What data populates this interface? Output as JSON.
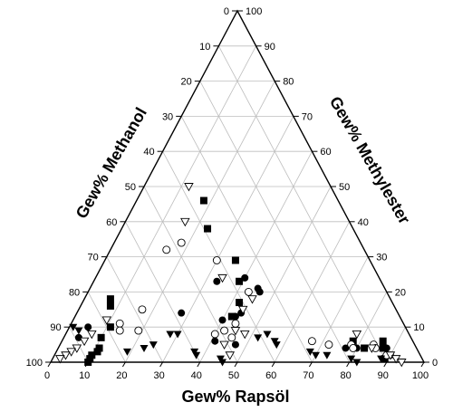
{
  "chart_data": {
    "type": "scatter",
    "subtype": "ternary",
    "title": "",
    "grid": true,
    "tick_values": [
      0,
      10,
      20,
      30,
      40,
      50,
      60,
      70,
      80,
      90,
      100
    ],
    "axes": {
      "bottom": {
        "label": "Gew% Rapsöl",
        "component": "rapsoel",
        "range": [
          0,
          100
        ]
      },
      "left": {
        "label": "Gew% Methanol",
        "component": "methanol",
        "range": [
          0,
          100
        ]
      },
      "right": {
        "label": "Gew% Methylester",
        "component": "methylester",
        "range": [
          0,
          100
        ]
      }
    },
    "point_order": [
      "rapsoel",
      "methylester",
      "methanol"
    ],
    "series": [
      {
        "marker": "filled-circle",
        "points": [
          [
            28,
            14,
            58
          ],
          [
            33,
            23,
            44
          ],
          [
            40,
            24,
            36
          ],
          [
            45,
            21,
            34
          ],
          [
            46,
            20,
            34
          ],
          [
            44,
            14,
            42
          ],
          [
            43,
            13,
            44
          ],
          [
            40,
            12,
            48
          ],
          [
            41,
            6,
            53
          ],
          [
            47,
            5,
            48
          ],
          [
            5,
            10,
            85
          ],
          [
            4,
            7,
            89
          ],
          [
            77,
            4,
            19
          ],
          [
            80,
            4,
            16
          ],
          [
            88,
            4,
            8
          ],
          [
            90,
            2,
            8
          ]
        ]
      },
      {
        "marker": "filled-square",
        "points": [
          [
            18,
            46,
            36
          ],
          [
            23,
            38,
            39
          ],
          [
            35,
            29,
            36
          ],
          [
            39,
            23,
            38
          ],
          [
            42,
            17,
            41
          ],
          [
            42,
            13,
            45
          ],
          [
            7,
            18,
            75
          ],
          [
            8,
            16,
            76
          ],
          [
            11,
            10,
            79
          ],
          [
            10,
            7,
            83
          ],
          [
            11,
            4,
            85
          ],
          [
            11,
            3,
            86
          ],
          [
            10,
            2,
            88
          ],
          [
            10,
            1,
            89
          ],
          [
            10,
            0,
            90
          ],
          [
            78,
            6,
            16
          ],
          [
            82,
            4,
            14
          ],
          [
            86,
            6,
            8
          ],
          [
            87,
            4,
            9
          ],
          [
            89,
            1,
            10
          ]
        ]
      },
      {
        "marker": "open-circle",
        "points": [
          [
            15,
            32,
            53
          ],
          [
            18,
            34,
            48
          ],
          [
            30,
            29,
            41
          ],
          [
            43,
            20,
            37
          ],
          [
            44,
            11,
            45
          ],
          [
            17,
            15,
            68
          ],
          [
            13,
            11,
            76
          ],
          [
            14,
            9,
            77
          ],
          [
            19,
            9,
            72
          ],
          [
            42,
            9,
            49
          ],
          [
            40,
            8,
            52
          ],
          [
            45,
            7,
            48
          ],
          [
            67,
            6,
            27
          ],
          [
            72,
            5,
            23
          ],
          [
            78,
            5,
            17
          ],
          [
            79,
            4,
            17
          ],
          [
            84,
            5,
            11
          ],
          [
            85,
            4,
            11
          ],
          [
            89,
            2,
            9
          ]
        ]
      },
      {
        "marker": "open-triangle-down",
        "points": [
          [
            12,
            50,
            38
          ],
          [
            16,
            40,
            44
          ],
          [
            34,
            24,
            42
          ],
          [
            45,
            18,
            37
          ],
          [
            44,
            15,
            41
          ],
          [
            48,
            8,
            44
          ],
          [
            44,
            5,
            51
          ],
          [
            45,
            9,
            46
          ],
          [
            47,
            2,
            51
          ],
          [
            9,
            12,
            79
          ],
          [
            7,
            8,
            85
          ],
          [
            6,
            6,
            88
          ],
          [
            5,
            4,
            91
          ],
          [
            4,
            3,
            93
          ],
          [
            3,
            2,
            95
          ],
          [
            2,
            1,
            97
          ],
          [
            78,
            8,
            14
          ],
          [
            84,
            4,
            12
          ],
          [
            90,
            2,
            8
          ],
          [
            92,
            1,
            7
          ],
          [
            94,
            0,
            6
          ]
        ]
      },
      {
        "marker": "filled-triangle-down",
        "points": [
          [
            28,
            8,
            64
          ],
          [
            30,
            8,
            62
          ],
          [
            19,
            3,
            78
          ],
          [
            23,
            4,
            73
          ],
          [
            25,
            5,
            70
          ],
          [
            37,
            3,
            60
          ],
          [
            38,
            2,
            60
          ],
          [
            45,
            1,
            54
          ],
          [
            46,
            0,
            54
          ],
          [
            1,
            10,
            89
          ],
          [
            3,
            9,
            88
          ],
          [
            52,
            7,
            41
          ],
          [
            54,
            8,
            38
          ],
          [
            57,
            6,
            37
          ],
          [
            58,
            5,
            37
          ],
          [
            68,
            3,
            29
          ],
          [
            70,
            2,
            28
          ],
          [
            73,
            2,
            25
          ],
          [
            80,
            1,
            19
          ],
          [
            82,
            0,
            18
          ],
          [
            88,
            1,
            11
          ]
        ]
      }
    ]
  }
}
